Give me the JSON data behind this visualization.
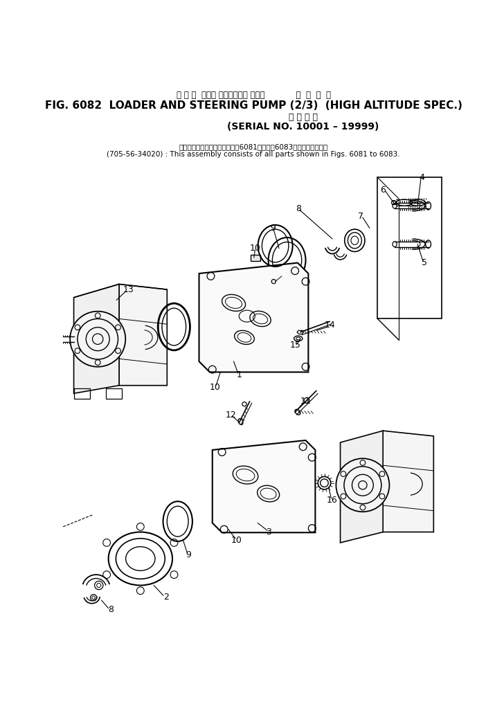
{
  "title_jp": "ロ ー ダ  および ステアリング ポンプ            高  地  仕  様",
  "title_en": "FIG. 6082  LOADER AND STEERING PUMP (2/3)  (HIGH ALTITUDE SPEC.)",
  "subtitle_jp": "適 用 号 機",
  "subtitle_en": "(SERIAL NO. 10001 – 19999)",
  "note_jp": "このアセンブリの構成部品は第6081図から第6083図まで含みます。",
  "note_en": "(705-56-34020) : This assembly consists of all parts shown in Figs. 6081 to 6083.",
  "bg_color": "#ffffff",
  "line_color": "#000000",
  "text_color": "#000000",
  "fig_width": 7.15,
  "fig_height": 10.14
}
